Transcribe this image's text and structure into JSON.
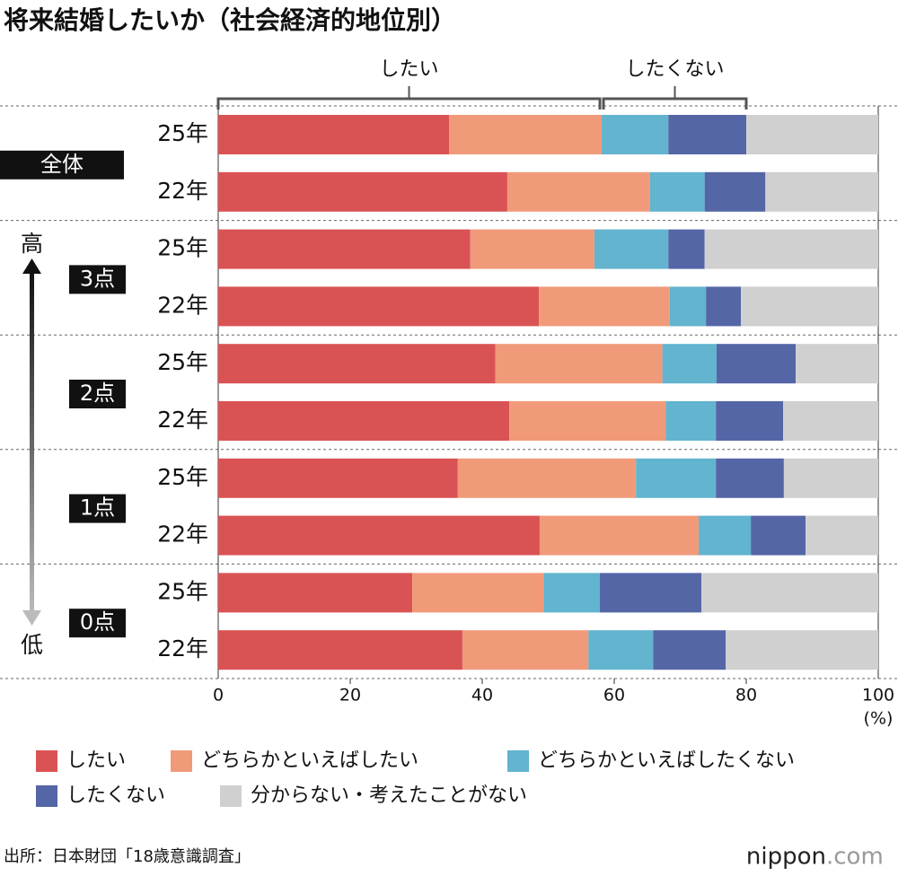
{
  "chart_data": {
    "type": "stacked-bar-horizontal",
    "title": "将来結婚したいか（社会経済的地位別）",
    "categories": [
      "25年",
      "22年",
      "25年",
      "22年",
      "25年",
      "22年",
      "25年",
      "22年",
      "25年",
      "22年"
    ],
    "groups": [
      "全体",
      "3点",
      "2点",
      "1点",
      "0点"
    ],
    "arrow_labels": [
      "高",
      "低"
    ],
    "annotations": [
      "したい",
      "したくない"
    ],
    "series": [
      {
        "name": "したい",
        "color": "#d95355",
        "values": [
          35.0,
          43.8,
          38.2,
          48.6,
          42.0,
          44.1,
          36.3,
          48.7,
          29.4,
          37.0
        ]
      },
      {
        "name": "どちらかといえばしたい",
        "color": "#f09a7a",
        "values": [
          23.1,
          21.6,
          18.8,
          19.8,
          25.3,
          23.7,
          27.0,
          24.1,
          19.9,
          19.1
        ]
      },
      {
        "name": "どちらかといえばしたくない",
        "color": "#62b4cf",
        "values": [
          10.1,
          8.3,
          11.2,
          5.5,
          8.2,
          7.6,
          12.1,
          7.9,
          8.5,
          9.8
        ]
      },
      {
        "name": "したくない",
        "color": "#5566a6",
        "values": [
          11.8,
          9.2,
          5.5,
          5.3,
          12.0,
          10.2,
          10.3,
          8.3,
          15.4,
          11.0
        ]
      },
      {
        "name": "分からない・考えたことがない",
        "color": "#d0d0d0",
        "values": [
          20.0,
          17.1,
          26.3,
          20.8,
          12.5,
          14.4,
          14.3,
          11.0,
          26.8,
          23.1
        ]
      }
    ],
    "xlim": [
      0,
      100
    ],
    "xticks": [
      0,
      20,
      40,
      60,
      80,
      100
    ],
    "x_unit": "(%)",
    "source": "出所：日本財団「18歳意識調査」",
    "logo": [
      "nippon",
      ".com"
    ]
  }
}
